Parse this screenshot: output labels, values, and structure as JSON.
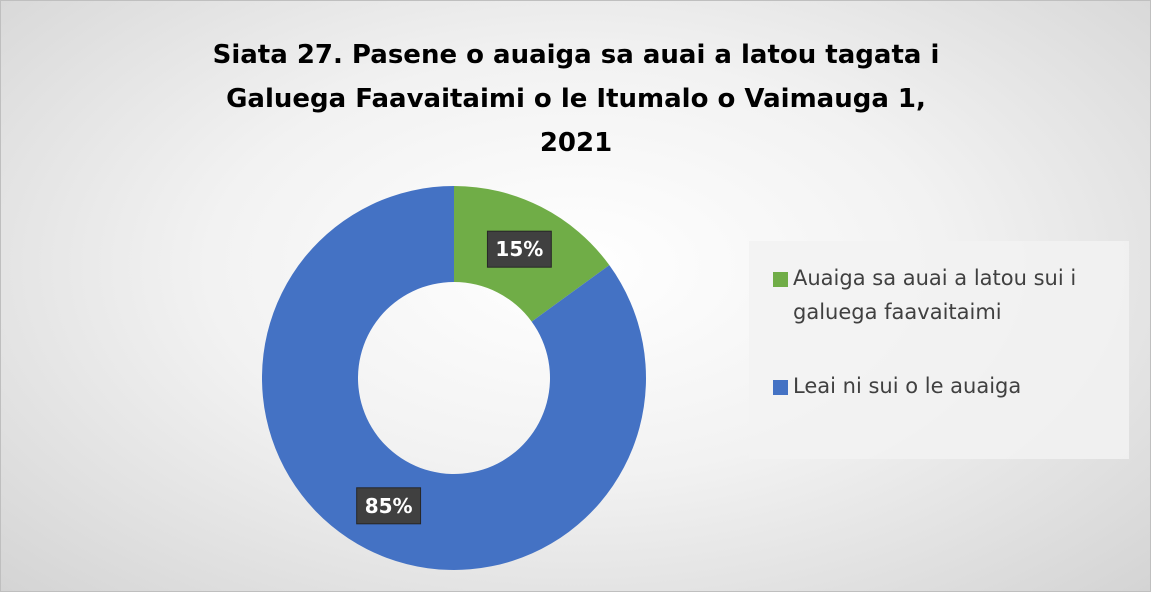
{
  "chart_data": {
    "type": "donut",
    "title": "Siata 27. Pasene o auaiga sa auai a latou tagata i Galuega Faavaitaimi o le Itumalo o Vaimauga 1, 2021",
    "categories": [
      "Auaiga sa auai a latou sui i galuega faavaitaimi",
      "Leai ni sui o le auaiga"
    ],
    "values": [
      15,
      85
    ],
    "value_labels": [
      "15%",
      "85%"
    ],
    "colors": [
      "#70ad47",
      "#4472c4"
    ]
  }
}
